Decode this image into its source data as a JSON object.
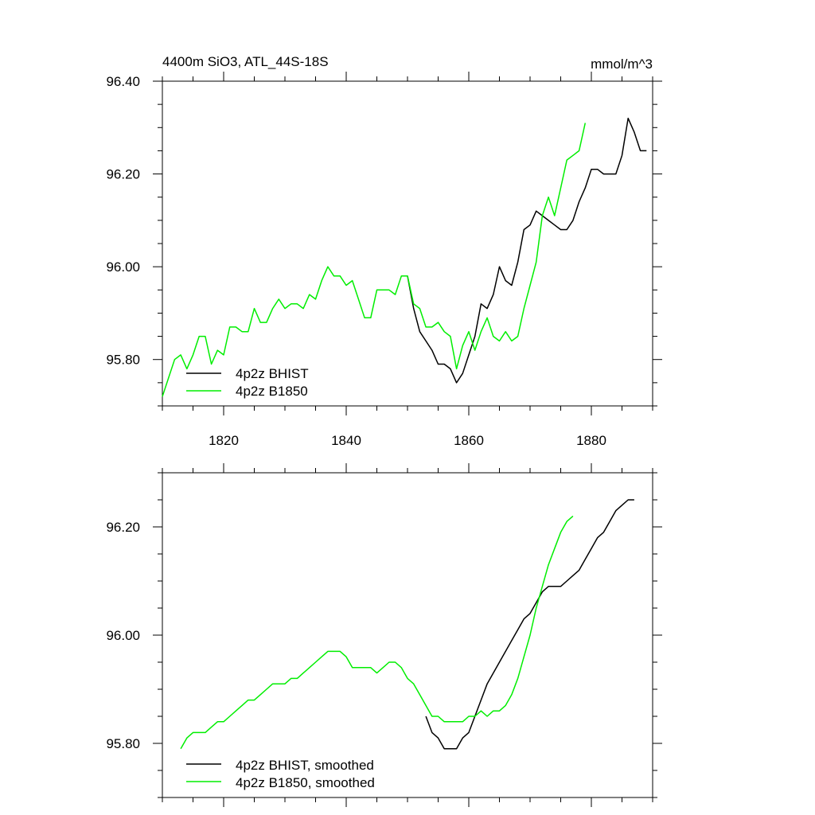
{
  "chart_data": [
    {
      "type": "line",
      "title": "4400m SiO3, ATL_44S-18S",
      "units": "mmol/m^3",
      "xlim": [
        1810,
        1890
      ],
      "ylim": [
        95.7,
        96.4
      ],
      "xticks": [
        1820,
        1840,
        1860,
        1880
      ],
      "xtick_labels": [
        "1820",
        "1840",
        "1860",
        "1880"
      ],
      "yticks": [
        95.8,
        96.0,
        96.2,
        96.4
      ],
      "ytick_labels": [
        "95.80",
        "96.00",
        "96.20",
        "96.40"
      ],
      "legend_position": "bottom-left",
      "series": [
        {
          "name": "4p2z BHIST",
          "color": "#000000",
          "x": [
            1850,
            1851,
            1852,
            1853,
            1854,
            1855,
            1856,
            1857,
            1858,
            1859,
            1860,
            1861,
            1862,
            1863,
            1864,
            1865,
            1866,
            1867,
            1868,
            1869,
            1870,
            1871,
            1872,
            1873,
            1874,
            1875,
            1876,
            1877,
            1878,
            1879,
            1880,
            1881,
            1882,
            1883,
            1884,
            1885,
            1886,
            1887,
            1888,
            1889
          ],
          "y": [
            95.98,
            95.91,
            95.86,
            95.84,
            95.82,
            95.79,
            95.79,
            95.78,
            95.75,
            95.77,
            95.81,
            95.85,
            95.92,
            95.91,
            95.94,
            96.0,
            95.97,
            95.96,
            96.01,
            96.08,
            96.09,
            96.12,
            96.11,
            96.1,
            96.09,
            96.08,
            96.08,
            96.1,
            96.14,
            96.17,
            96.21,
            96.21,
            96.2,
            96.2,
            96.2,
            96.24,
            96.32,
            96.29,
            96.25,
            96.25
          ]
        },
        {
          "name": "4p2z B1850",
          "color": "#00ee00",
          "x": [
            1810,
            1811,
            1812,
            1813,
            1814,
            1815,
            1816,
            1817,
            1818,
            1819,
            1820,
            1821,
            1822,
            1823,
            1824,
            1825,
            1826,
            1827,
            1828,
            1829,
            1830,
            1831,
            1832,
            1833,
            1834,
            1835,
            1836,
            1837,
            1838,
            1839,
            1840,
            1841,
            1842,
            1843,
            1844,
            1845,
            1846,
            1847,
            1848,
            1849,
            1850,
            1851,
            1852,
            1853,
            1854,
            1855,
            1856,
            1857,
            1858,
            1859,
            1860,
            1861,
            1862,
            1863,
            1864,
            1865,
            1866,
            1867,
            1868,
            1869,
            1870,
            1871,
            1872,
            1873,
            1874,
            1875,
            1876,
            1877,
            1878,
            1879
          ],
          "y": [
            95.72,
            95.76,
            95.8,
            95.81,
            95.78,
            95.81,
            95.85,
            95.85,
            95.79,
            95.82,
            95.81,
            95.87,
            95.87,
            95.86,
            95.86,
            95.91,
            95.88,
            95.88,
            95.91,
            95.93,
            95.91,
            95.92,
            95.92,
            95.91,
            95.94,
            95.93,
            95.97,
            96.0,
            95.98,
            95.98,
            95.96,
            95.97,
            95.93,
            95.89,
            95.89,
            95.95,
            95.95,
            95.95,
            95.94,
            95.98,
            95.98,
            95.92,
            95.91,
            95.87,
            95.87,
            95.88,
            95.86,
            95.85,
            95.78,
            95.83,
            95.86,
            95.82,
            95.86,
            95.89,
            95.85,
            95.84,
            95.86,
            95.84,
            95.85,
            95.91,
            95.96,
            96.01,
            96.11,
            96.15,
            96.11,
            96.17,
            96.23,
            96.24,
            96.25,
            96.31
          ]
        }
      ]
    },
    {
      "type": "line",
      "title": "",
      "xlim": [
        1810,
        1890
      ],
      "ylim": [
        95.7,
        96.3
      ],
      "xticks": [
        1820,
        1840,
        1860,
        1880
      ],
      "yticks": [
        95.8,
        96.0,
        96.2
      ],
      "ytick_labels": [
        "95.80",
        "96.00",
        "96.20"
      ],
      "legend_position": "bottom-left",
      "series": [
        {
          "name": "4p2z BHIST, smoothed",
          "color": "#000000",
          "x": [
            1853,
            1854,
            1855,
            1856,
            1857,
            1858,
            1859,
            1860,
            1861,
            1862,
            1863,
            1864,
            1865,
            1866,
            1867,
            1868,
            1869,
            1870,
            1871,
            1872,
            1873,
            1874,
            1875,
            1876,
            1877,
            1878,
            1879,
            1880,
            1881,
            1882,
            1883,
            1884,
            1885,
            1886,
            1887
          ],
          "y": [
            95.85,
            95.82,
            95.81,
            95.79,
            95.79,
            95.79,
            95.81,
            95.82,
            95.85,
            95.88,
            95.91,
            95.93,
            95.95,
            95.97,
            95.99,
            96.01,
            96.03,
            96.04,
            96.06,
            96.08,
            96.09,
            96.09,
            96.09,
            96.1,
            96.11,
            96.12,
            96.14,
            96.16,
            96.18,
            96.19,
            96.21,
            96.23,
            96.24,
            96.25,
            96.25
          ]
        },
        {
          "name": "4p2z B1850, smoothed",
          "color": "#00ee00",
          "x": [
            1813,
            1814,
            1815,
            1816,
            1817,
            1818,
            1819,
            1820,
            1821,
            1822,
            1823,
            1824,
            1825,
            1826,
            1827,
            1828,
            1829,
            1830,
            1831,
            1832,
            1833,
            1834,
            1835,
            1836,
            1837,
            1838,
            1839,
            1840,
            1841,
            1842,
            1843,
            1844,
            1845,
            1846,
            1847,
            1848,
            1849,
            1850,
            1851,
            1852,
            1853,
            1854,
            1855,
            1856,
            1857,
            1858,
            1859,
            1860,
            1861,
            1862,
            1863,
            1864,
            1865,
            1866,
            1867,
            1868,
            1869,
            1870,
            1871,
            1872,
            1873,
            1874,
            1875,
            1876,
            1877
          ],
          "y": [
            95.79,
            95.81,
            95.82,
            95.82,
            95.82,
            95.83,
            95.84,
            95.84,
            95.85,
            95.86,
            95.87,
            95.88,
            95.88,
            95.89,
            95.9,
            95.91,
            95.91,
            95.91,
            95.92,
            95.92,
            95.93,
            95.94,
            95.95,
            95.96,
            95.97,
            95.97,
            95.97,
            95.96,
            95.94,
            95.94,
            95.94,
            95.94,
            95.93,
            95.94,
            95.95,
            95.95,
            95.94,
            95.92,
            95.91,
            95.89,
            95.87,
            95.85,
            95.85,
            95.84,
            95.84,
            95.84,
            95.84,
            95.85,
            95.85,
            95.86,
            95.85,
            95.86,
            95.86,
            95.87,
            95.89,
            95.92,
            95.96,
            96.0,
            96.05,
            96.09,
            96.13,
            96.16,
            96.19,
            96.21,
            96.22
          ]
        }
      ]
    }
  ]
}
